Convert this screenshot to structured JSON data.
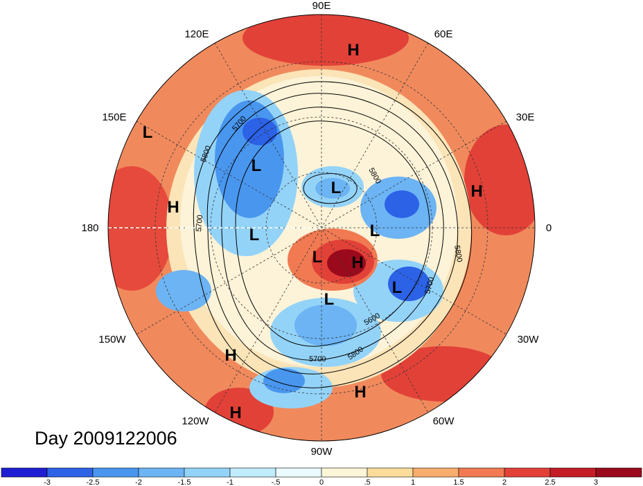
{
  "longitude_labels": {
    "lon_90e": "90E",
    "lon_120e": "120E",
    "lon_60e": "60E",
    "lon_150e": "150E",
    "lon_30e": "30E",
    "lon_180": "180",
    "lon_0": "0",
    "lon_150w": "150W",
    "lon_30w": "30W",
    "lon_120w": "120W",
    "lon_60w": "60W",
    "lon_90w": "90W"
  },
  "centers": {
    "h1": "H",
    "h2": "H",
    "h3": "H",
    "h4": "H",
    "h5": "H",
    "h6": "H",
    "h7": "H",
    "l1": "L",
    "l2": "L",
    "l3": "L",
    "l4": "L",
    "l5": "L",
    "l6": "L",
    "l7": "L",
    "l8": "L"
  },
  "contour_labels": {
    "c_5700_a": "5700",
    "c_5800_a": "5800",
    "c_5700_b": "5700",
    "c_5800_b": "5800",
    "c_5700_c": "5700",
    "c_5600_a": "5600",
    "c_5700_d": "5700",
    "c_5800_c": "5800",
    "c_5800_d": "5800"
  },
  "date_label": "Day 2009122006",
  "colorbar": {
    "labels": [
      "-3",
      "-2.5",
      "-2",
      "-1.5",
      "-1",
      "-.5",
      "0",
      ".5",
      "1",
      "1.5",
      "2",
      "2.5",
      "3"
    ],
    "colors": [
      "#1e1ed2",
      "#2c62e6",
      "#4996ef",
      "#6cb4f4",
      "#94d3f8",
      "#c1ecfb",
      "#eafafd",
      "#fdf5d8",
      "#fbdc9b",
      "#f8ad6c",
      "#f17a52",
      "#e24138",
      "#c41d27",
      "#9b0a1c"
    ]
  },
  "colors": {
    "warm": "#ef7a55",
    "hot": "#d3362f",
    "cold": "#2a6ee6",
    "cool": "#8dc8f4",
    "neutral": "#fbefd0"
  }
}
